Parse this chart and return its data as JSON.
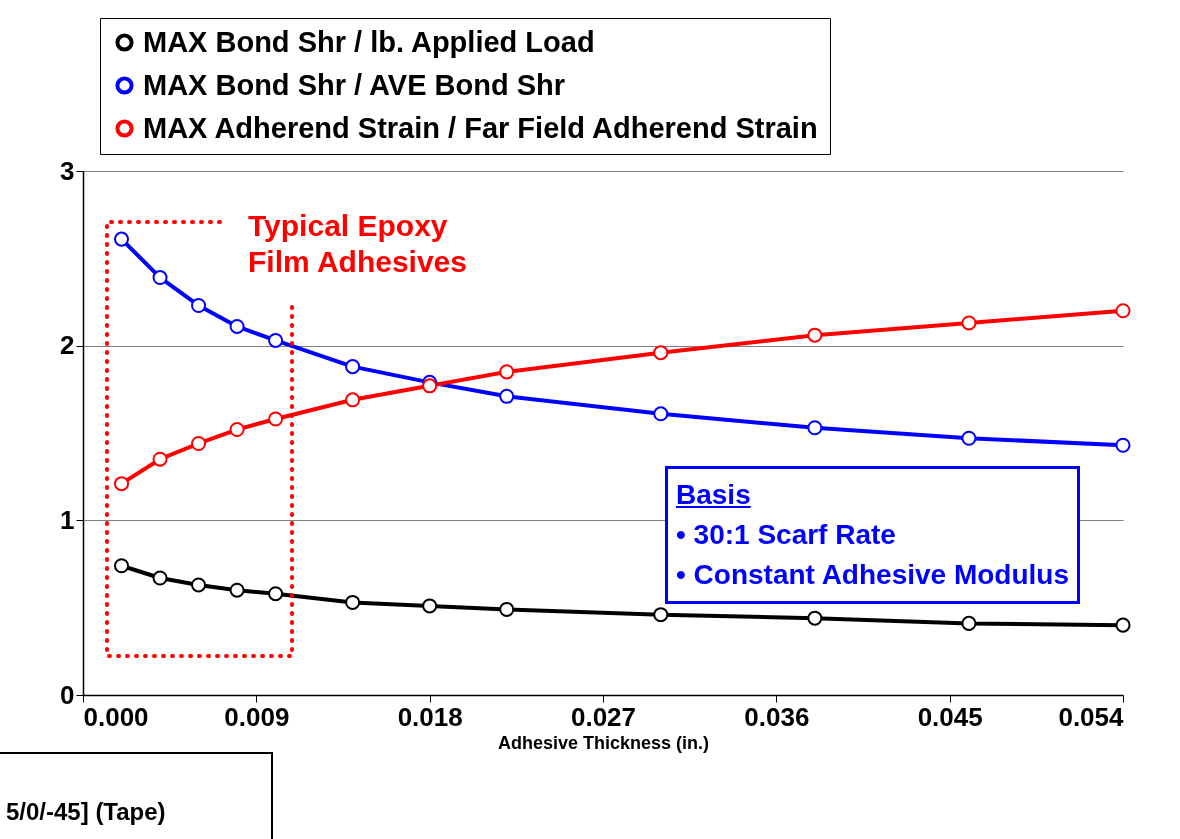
{
  "chart_data": {
    "type": "line",
    "xlabel": "Adhesive Thickness (in.)",
    "x": [
      0.002,
      0.004,
      0.006,
      0.008,
      0.01,
      0.014,
      0.018,
      0.022,
      0.03,
      0.038,
      0.046,
      0.054
    ],
    "series": [
      {
        "name": "MAX Bond Shr / lb. Applied Load",
        "color": "#000000",
        "values": [
          0.74,
          0.67,
          0.63,
          0.6,
          0.58,
          0.53,
          0.51,
          0.49,
          0.46,
          0.44,
          0.41,
          0.4
        ]
      },
      {
        "name": "MAX Bond Shr / AVE Bond Shr",
        "color": "#0000ff",
        "values": [
          2.61,
          2.39,
          2.23,
          2.11,
          2.03,
          1.88,
          1.79,
          1.71,
          1.61,
          1.53,
          1.47,
          1.43
        ]
      },
      {
        "name": "MAX Adherend Strain / Far Field Adherend Strain",
        "color": "#ff0000",
        "values": [
          1.21,
          1.35,
          1.44,
          1.52,
          1.58,
          1.69,
          1.77,
          1.85,
          1.96,
          2.06,
          2.13,
          2.2
        ]
      }
    ],
    "xlim": [
      0,
      0.054
    ],
    "xticks": [
      {
        "value": 0,
        "label": "0.000"
      },
      0.009,
      0.018,
      0.027,
      0.036,
      0.045,
      0.054
    ],
    "ylim": [
      0,
      3
    ],
    "yticks": [
      0,
      1,
      2,
      3
    ],
    "grid": "y",
    "legend": "top",
    "marker": "circle",
    "annotations": [
      "Typical Epoxy Film Adhesives",
      "Basis",
      "• 30:1 Scarf Rate",
      "• Constant Adhesive Modulus",
      "5/0/-45]  (Tape)"
    ]
  }
}
